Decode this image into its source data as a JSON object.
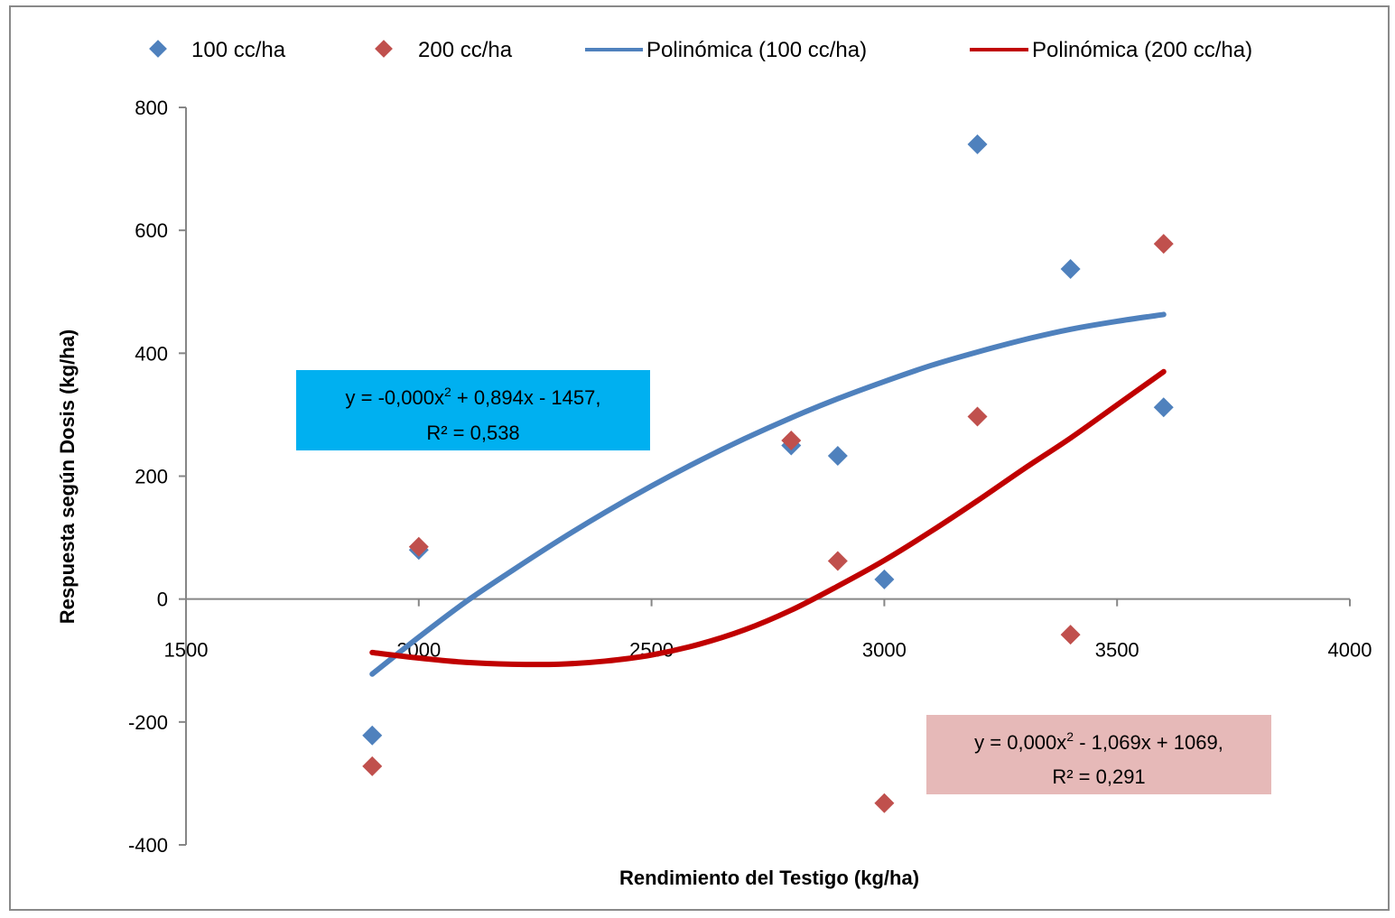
{
  "chart_data": {
    "type": "scatter",
    "xlabel": "Rendimiento del Testigo (kg/ha)",
    "ylabel": "Respuesta según Dosis (kg/ha)",
    "xlim": [
      1500,
      4000
    ],
    "ylim": [
      -400,
      800
    ],
    "x_ticks": [
      "1500",
      "2000",
      "2500",
      "3000",
      "3500",
      "4000"
    ],
    "y_ticks": [
      "800",
      "600",
      "400",
      "200",
      "0",
      "-200",
      "-400"
    ],
    "grid": false,
    "legend_position": "top",
    "series": [
      {
        "name": "100 cc/ha",
        "kind": "scatter",
        "color": "#4F81BD",
        "points": [
          [
            1900,
            -222
          ],
          [
            2000,
            80
          ],
          [
            2800,
            250
          ],
          [
            2900,
            233
          ],
          [
            3000,
            32
          ],
          [
            3200,
            740
          ],
          [
            3400,
            537
          ],
          [
            3600,
            312
          ]
        ]
      },
      {
        "name": "200 cc/ha",
        "kind": "scatter",
        "color": "#C0504D",
        "points": [
          [
            1900,
            -272
          ],
          [
            2000,
            85
          ],
          [
            2800,
            258
          ],
          [
            2900,
            62
          ],
          [
            3000,
            -332
          ],
          [
            3200,
            297
          ],
          [
            3400,
            -58
          ],
          [
            3600,
            578
          ]
        ]
      },
      {
        "name": "Polinómica (100 cc/ha)",
        "kind": "trendline",
        "color": "#4F81BD",
        "points": [
          [
            1900,
            -122
          ],
          [
            2000,
            -62
          ],
          [
            2100,
            -5
          ],
          [
            2200,
            46
          ],
          [
            2300,
            95
          ],
          [
            2400,
            141
          ],
          [
            2500,
            184
          ],
          [
            2600,
            224
          ],
          [
            2700,
            261
          ],
          [
            2800,
            295
          ],
          [
            2900,
            326
          ],
          [
            3000,
            354
          ],
          [
            3100,
            380
          ],
          [
            3200,
            402
          ],
          [
            3300,
            422
          ],
          [
            3400,
            439
          ],
          [
            3500,
            452
          ],
          [
            3600,
            463
          ]
        ]
      },
      {
        "name": "Polinómica (200 cc/ha)",
        "kind": "trendline",
        "color": "#C00000",
        "points": [
          [
            1900,
            -87
          ],
          [
            2000,
            -96
          ],
          [
            2100,
            -103
          ],
          [
            2200,
            -106
          ],
          [
            2300,
            -106
          ],
          [
            2400,
            -101
          ],
          [
            2500,
            -91
          ],
          [
            2600,
            -74
          ],
          [
            2700,
            -50
          ],
          [
            2800,
            -18
          ],
          [
            2900,
            21
          ],
          [
            3000,
            63
          ],
          [
            3100,
            110
          ],
          [
            3200,
            160
          ],
          [
            3300,
            212
          ],
          [
            3400,
            262
          ],
          [
            3500,
            316
          ],
          [
            3600,
            370
          ]
        ]
      }
    ],
    "annotations": [
      {
        "id": "eq100",
        "line1_pre": "y = -0,000x",
        "line1_sup": "2",
        "line1_post": " + 0,894x - 1457,",
        "line2": "R² = 0,538",
        "background": "#00B0F0"
      },
      {
        "id": "eq200",
        "line1_pre": "y = 0,000x",
        "line1_sup": "2",
        "line1_post": " - 1,069x + 1069,",
        "line2": "R² = 0,291",
        "background": "#E6B9B8"
      }
    ]
  }
}
